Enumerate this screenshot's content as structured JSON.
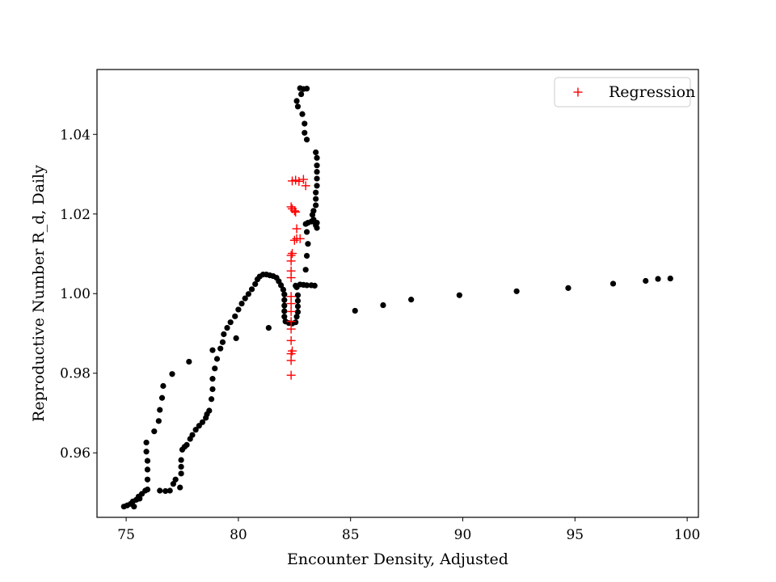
{
  "chart_data": {
    "type": "scatter",
    "title": "",
    "xlabel": "Encounter Density, Adjusted",
    "ylabel": "Reproductive Number R_d, Daily",
    "xlim": [
      73.7,
      100.5
    ],
    "ylim": [
      0.9438,
      1.0563
    ],
    "x_ticks": [
      75,
      80,
      85,
      90,
      95,
      100
    ],
    "x_tick_labels": [
      "75",
      "80",
      "85",
      "90",
      "95",
      "100"
    ],
    "y_ticks": [
      0.96,
      0.98,
      1.0,
      1.02,
      1.04
    ],
    "y_tick_labels": [
      "0.96",
      "0.98",
      "1.00",
      "1.02",
      "1.04"
    ],
    "grid": false,
    "legend": {
      "placement": "top-right",
      "entries": [
        "Regression"
      ]
    },
    "colors": {
      "observed": "#000000",
      "regression": "#ff0000"
    },
    "series": [
      {
        "marker": "dot",
        "color": "#000000",
        "points": [
          [
            74.9,
            0.9465
          ],
          [
            75.05,
            0.9468
          ],
          [
            75.2,
            0.9472
          ],
          [
            75.3,
            0.9478
          ],
          [
            75.35,
            0.9465
          ],
          [
            75.45,
            0.9482
          ],
          [
            75.55,
            0.949
          ],
          [
            75.6,
            0.9485
          ],
          [
            75.7,
            0.9497
          ],
          [
            75.85,
            0.9505
          ],
          [
            75.95,
            0.9508
          ],
          [
            75.95,
            0.9533
          ],
          [
            75.95,
            0.9558
          ],
          [
            75.95,
            0.958
          ],
          [
            75.9,
            0.9603
          ],
          [
            75.9,
            0.9626
          ],
          [
            76.25,
            0.9654
          ],
          [
            76.45,
            0.968
          ],
          [
            76.5,
            0.9708
          ],
          [
            76.6,
            0.9738
          ],
          [
            76.65,
            0.9768
          ],
          [
            77.05,
            0.9798
          ],
          [
            77.8,
            0.9829
          ],
          [
            76.5,
            0.9505
          ],
          [
            76.75,
            0.9504
          ],
          [
            76.95,
            0.9505
          ],
          [
            77.1,
            0.9522
          ],
          [
            77.2,
            0.9533
          ],
          [
            77.4,
            0.9513
          ],
          [
            77.45,
            0.9548
          ],
          [
            77.45,
            0.9565
          ],
          [
            77.45,
            0.9582
          ],
          [
            77.5,
            0.9608
          ],
          [
            77.6,
            0.9615
          ],
          [
            77.7,
            0.962
          ],
          [
            77.85,
            0.9635
          ],
          [
            77.95,
            0.9645
          ],
          [
            78.1,
            0.9658
          ],
          [
            78.25,
            0.9668
          ],
          [
            78.4,
            0.9677
          ],
          [
            78.55,
            0.9688
          ],
          [
            78.6,
            0.9697
          ],
          [
            78.7,
            0.9706
          ],
          [
            78.8,
            0.9735
          ],
          [
            78.85,
            0.976
          ],
          [
            78.85,
            0.9786
          ],
          [
            78.95,
            0.9812
          ],
          [
            79.05,
            0.9836
          ],
          [
            78.85,
            0.9858
          ],
          [
            79.2,
            0.9862
          ],
          [
            79.3,
            0.9878
          ],
          [
            79.35,
            0.9898
          ],
          [
            79.5,
            0.9914
          ],
          [
            79.65,
            0.9928
          ],
          [
            79.85,
            0.9943
          ],
          [
            79.9,
            0.9888
          ],
          [
            80.0,
            0.996
          ],
          [
            80.15,
            0.9975
          ],
          [
            80.3,
            0.9988
          ],
          [
            80.45,
            0.9999
          ],
          [
            80.6,
            1.0011
          ],
          [
            80.75,
            1.0024
          ],
          [
            80.85,
            1.0036
          ],
          [
            80.95,
            1.0043
          ],
          [
            81.1,
            1.0048
          ],
          [
            81.25,
            1.0048
          ],
          [
            81.4,
            1.0046
          ],
          [
            81.55,
            1.0044
          ],
          [
            81.7,
            1.004
          ],
          [
            81.8,
            1.0031
          ],
          [
            81.9,
            1.0021
          ],
          [
            82.0,
            1.001
          ],
          [
            82.05,
            0.9998
          ],
          [
            82.05,
            0.9984
          ],
          [
            82.05,
            0.997
          ],
          [
            82.05,
            0.9956
          ],
          [
            82.05,
            0.9942
          ],
          [
            82.1,
            0.993
          ],
          [
            82.25,
            0.9926
          ],
          [
            82.4,
            0.9925
          ],
          [
            82.55,
            0.9928
          ],
          [
            82.6,
            0.9942
          ],
          [
            82.65,
            0.9954
          ],
          [
            82.65,
            0.9968
          ],
          [
            82.65,
            0.9982
          ],
          [
            82.65,
            0.9996
          ],
          [
            82.6,
            1.0016
          ],
          [
            82.55,
            1.002
          ],
          [
            82.75,
            1.0023
          ],
          [
            82.9,
            1.0022
          ],
          [
            83.05,
            1.0021
          ],
          [
            83.25,
            1.0021
          ],
          [
            83.4,
            1.002
          ],
          [
            83.0,
            1.006
          ],
          [
            83.05,
            1.0095
          ],
          [
            83.1,
            1.0125
          ],
          [
            83.05,
            1.0155
          ],
          [
            83.0,
            1.0175
          ],
          [
            83.1,
            1.0178
          ],
          [
            83.25,
            1.0181
          ],
          [
            83.4,
            1.018
          ],
          [
            83.5,
            1.0178
          ],
          [
            83.5,
            1.0165
          ],
          [
            83.45,
            1.0172
          ],
          [
            83.35,
            1.0186
          ],
          [
            83.3,
            1.0198
          ],
          [
            83.35,
            1.0208
          ],
          [
            83.45,
            1.0222
          ],
          [
            83.45,
            1.0238
          ],
          [
            83.45,
            1.0254
          ],
          [
            83.5,
            1.0271
          ],
          [
            83.5,
            1.0289
          ],
          [
            83.5,
            1.0306
          ],
          [
            83.5,
            1.0322
          ],
          [
            83.5,
            1.0341
          ],
          [
            83.45,
            1.0355
          ],
          [
            83.05,
            1.0387
          ],
          [
            82.95,
            1.0404
          ],
          [
            82.95,
            1.0427
          ],
          [
            82.85,
            1.0451
          ],
          [
            82.65,
            1.047
          ],
          [
            82.6,
            1.0484
          ],
          [
            82.8,
            1.0501
          ],
          [
            82.9,
            1.0514
          ],
          [
            82.75,
            1.0516
          ],
          [
            83.05,
            1.0515
          ],
          [
            81.35,
            0.9914
          ],
          [
            85.2,
            0.9957
          ],
          [
            86.45,
            0.9971
          ],
          [
            87.7,
            0.9985
          ],
          [
            89.85,
            0.9996
          ],
          [
            92.4,
            1.0006
          ],
          [
            94.7,
            1.0014
          ],
          [
            96.7,
            1.0025
          ],
          [
            98.15,
            1.0032
          ],
          [
            98.7,
            1.0037
          ],
          [
            99.25,
            1.0038
          ]
        ]
      },
      {
        "name": "Regression",
        "marker": "plus",
        "color": "#ff0000",
        "points": [
          [
            82.35,
            0.9795
          ],
          [
            82.35,
            0.9832
          ],
          [
            82.35,
            0.9849
          ],
          [
            82.4,
            0.9856
          ],
          [
            82.35,
            0.9882
          ],
          [
            82.35,
            0.9911
          ],
          [
            82.35,
            0.993
          ],
          [
            82.35,
            0.9955
          ],
          [
            82.35,
            0.9975
          ],
          [
            82.35,
            0.9993
          ],
          [
            82.35,
            1.004
          ],
          [
            82.35,
            1.0057
          ],
          [
            82.35,
            1.0082
          ],
          [
            82.35,
            1.0096
          ],
          [
            82.4,
            1.0101
          ],
          [
            82.5,
            1.0134
          ],
          [
            82.6,
            1.0138
          ],
          [
            82.75,
            1.0138
          ],
          [
            82.6,
            1.0163
          ],
          [
            82.55,
            1.0205
          ],
          [
            82.5,
            1.0208
          ],
          [
            82.4,
            1.0213
          ],
          [
            82.35,
            1.0218
          ],
          [
            82.4,
            1.0283
          ],
          [
            82.55,
            1.0285
          ],
          [
            82.7,
            1.0282
          ],
          [
            82.9,
            1.0287
          ],
          [
            83.0,
            1.0271
          ]
        ]
      }
    ]
  }
}
